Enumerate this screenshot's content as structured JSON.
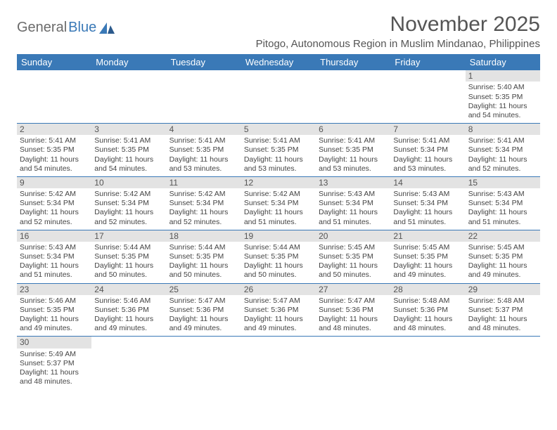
{
  "logo": {
    "text1": "General",
    "text2": "Blue"
  },
  "title": "November 2025",
  "location": "Pitogo, Autonomous Region in Muslim Mindanao, Philippines",
  "colors": {
    "header_bg": "#3a79b7",
    "header_text": "#ffffff",
    "daynum_bg": "#e3e3e3",
    "rule": "#3a79b7",
    "title_color": "#555555",
    "text_color": "#444444"
  },
  "weekdays": [
    "Sunday",
    "Monday",
    "Tuesday",
    "Wednesday",
    "Thursday",
    "Friday",
    "Saturday"
  ],
  "weeks": [
    [
      null,
      null,
      null,
      null,
      null,
      null,
      {
        "n": "1",
        "sunrise": "5:40 AM",
        "sunset": "5:35 PM",
        "daylight": "11 hours and 54 minutes."
      }
    ],
    [
      {
        "n": "2",
        "sunrise": "5:41 AM",
        "sunset": "5:35 PM",
        "daylight": "11 hours and 54 minutes."
      },
      {
        "n": "3",
        "sunrise": "5:41 AM",
        "sunset": "5:35 PM",
        "daylight": "11 hours and 54 minutes."
      },
      {
        "n": "4",
        "sunrise": "5:41 AM",
        "sunset": "5:35 PM",
        "daylight": "11 hours and 53 minutes."
      },
      {
        "n": "5",
        "sunrise": "5:41 AM",
        "sunset": "5:35 PM",
        "daylight": "11 hours and 53 minutes."
      },
      {
        "n": "6",
        "sunrise": "5:41 AM",
        "sunset": "5:35 PM",
        "daylight": "11 hours and 53 minutes."
      },
      {
        "n": "7",
        "sunrise": "5:41 AM",
        "sunset": "5:34 PM",
        "daylight": "11 hours and 53 minutes."
      },
      {
        "n": "8",
        "sunrise": "5:41 AM",
        "sunset": "5:34 PM",
        "daylight": "11 hours and 52 minutes."
      }
    ],
    [
      {
        "n": "9",
        "sunrise": "5:42 AM",
        "sunset": "5:34 PM",
        "daylight": "11 hours and 52 minutes."
      },
      {
        "n": "10",
        "sunrise": "5:42 AM",
        "sunset": "5:34 PM",
        "daylight": "11 hours and 52 minutes."
      },
      {
        "n": "11",
        "sunrise": "5:42 AM",
        "sunset": "5:34 PM",
        "daylight": "11 hours and 52 minutes."
      },
      {
        "n": "12",
        "sunrise": "5:42 AM",
        "sunset": "5:34 PM",
        "daylight": "11 hours and 51 minutes."
      },
      {
        "n": "13",
        "sunrise": "5:43 AM",
        "sunset": "5:34 PM",
        "daylight": "11 hours and 51 minutes."
      },
      {
        "n": "14",
        "sunrise": "5:43 AM",
        "sunset": "5:34 PM",
        "daylight": "11 hours and 51 minutes."
      },
      {
        "n": "15",
        "sunrise": "5:43 AM",
        "sunset": "5:34 PM",
        "daylight": "11 hours and 51 minutes."
      }
    ],
    [
      {
        "n": "16",
        "sunrise": "5:43 AM",
        "sunset": "5:34 PM",
        "daylight": "11 hours and 51 minutes."
      },
      {
        "n": "17",
        "sunrise": "5:44 AM",
        "sunset": "5:35 PM",
        "daylight": "11 hours and 50 minutes."
      },
      {
        "n": "18",
        "sunrise": "5:44 AM",
        "sunset": "5:35 PM",
        "daylight": "11 hours and 50 minutes."
      },
      {
        "n": "19",
        "sunrise": "5:44 AM",
        "sunset": "5:35 PM",
        "daylight": "11 hours and 50 minutes."
      },
      {
        "n": "20",
        "sunrise": "5:45 AM",
        "sunset": "5:35 PM",
        "daylight": "11 hours and 50 minutes."
      },
      {
        "n": "21",
        "sunrise": "5:45 AM",
        "sunset": "5:35 PM",
        "daylight": "11 hours and 49 minutes."
      },
      {
        "n": "22",
        "sunrise": "5:45 AM",
        "sunset": "5:35 PM",
        "daylight": "11 hours and 49 minutes."
      }
    ],
    [
      {
        "n": "23",
        "sunrise": "5:46 AM",
        "sunset": "5:35 PM",
        "daylight": "11 hours and 49 minutes."
      },
      {
        "n": "24",
        "sunrise": "5:46 AM",
        "sunset": "5:36 PM",
        "daylight": "11 hours and 49 minutes."
      },
      {
        "n": "25",
        "sunrise": "5:47 AM",
        "sunset": "5:36 PM",
        "daylight": "11 hours and 49 minutes."
      },
      {
        "n": "26",
        "sunrise": "5:47 AM",
        "sunset": "5:36 PM",
        "daylight": "11 hours and 49 minutes."
      },
      {
        "n": "27",
        "sunrise": "5:47 AM",
        "sunset": "5:36 PM",
        "daylight": "11 hours and 48 minutes."
      },
      {
        "n": "28",
        "sunrise": "5:48 AM",
        "sunset": "5:36 PM",
        "daylight": "11 hours and 48 minutes."
      },
      {
        "n": "29",
        "sunrise": "5:48 AM",
        "sunset": "5:37 PM",
        "daylight": "11 hours and 48 minutes."
      }
    ],
    [
      {
        "n": "30",
        "sunrise": "5:49 AM",
        "sunset": "5:37 PM",
        "daylight": "11 hours and 48 minutes."
      },
      null,
      null,
      null,
      null,
      null,
      null
    ]
  ],
  "labels": {
    "sunrise": "Sunrise:",
    "sunset": "Sunset:",
    "daylight": "Daylight:"
  }
}
